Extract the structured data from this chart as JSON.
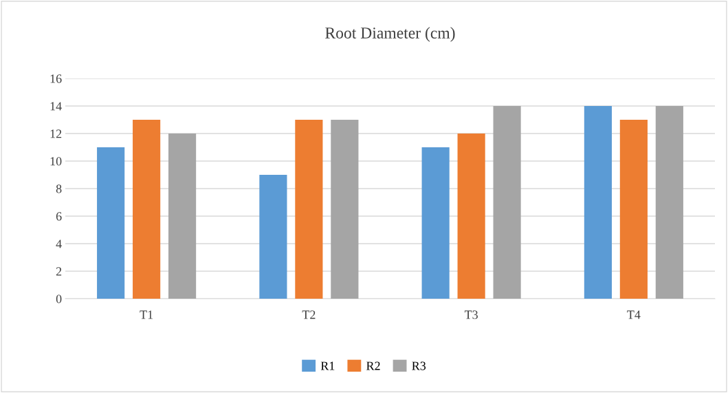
{
  "chart_data": {
    "type": "bar",
    "title": "Root Diameter (cm)",
    "categories": [
      "T1",
      "T2",
      "T3",
      "T4"
    ],
    "series": [
      {
        "name": "R1",
        "color": "#5b9bd5",
        "values": [
          11,
          9,
          11,
          14
        ]
      },
      {
        "name": "R2",
        "color": "#ed7d31",
        "values": [
          13,
          13,
          12,
          13
        ]
      },
      {
        "name": "R3",
        "color": "#a5a5a5",
        "values": [
          12,
          13,
          14,
          14
        ]
      }
    ],
    "ylim": [
      0,
      16
    ],
    "yticks": [
      0,
      2,
      4,
      6,
      8,
      10,
      12,
      14,
      16
    ],
    "grid": "y",
    "legend": "bottom"
  }
}
